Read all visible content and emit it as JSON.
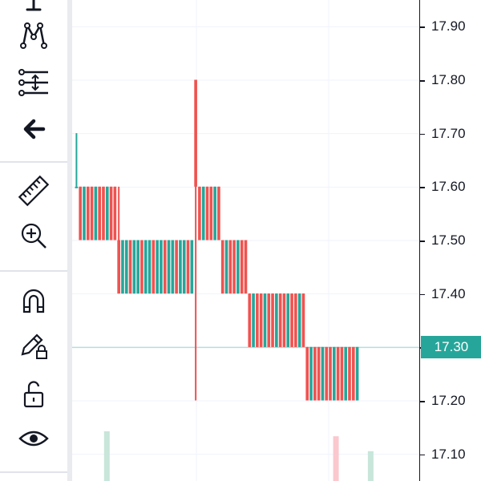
{
  "toolbar": {
    "tools": [
      {
        "name": "cursor-tool",
        "icon": "cursor-icon"
      },
      {
        "name": "pattern-tool",
        "icon": "pattern-icon"
      },
      {
        "name": "projection-tool",
        "icon": "projection-icon"
      },
      {
        "name": "back-tool",
        "icon": "arrow-left-icon"
      },
      {
        "name": "ruler-tool",
        "icon": "ruler-icon"
      },
      {
        "name": "zoom-in-tool",
        "icon": "zoom-in-icon"
      },
      {
        "name": "magnet-tool",
        "icon": "magnet-icon"
      },
      {
        "name": "lock-drawings-tool",
        "icon": "pencil-lock-icon"
      },
      {
        "name": "unlock-tool",
        "icon": "unlock-icon"
      },
      {
        "name": "visibility-tool",
        "icon": "eye-icon"
      }
    ]
  },
  "price_axis": {
    "ticks": [
      "17.90",
      "17.80",
      "17.70",
      "17.60",
      "17.50",
      "17.40",
      "17.30",
      "17.20",
      "17.10"
    ],
    "last_price": "17.30"
  },
  "colors": {
    "up": "#26a69a",
    "down": "#ef5350",
    "last_price_bg": "#26a69a",
    "grid": "#f0f3fa",
    "volume_up": "#c8e6da",
    "volume_down": "#fac8cd"
  },
  "chart_data": {
    "type": "candlestick",
    "ylim": [
      17.05,
      17.95
    ],
    "last_price": 17.3,
    "groups": [
      {
        "high": 17.7,
        "low": 17.6,
        "open": 17.6,
        "close": 17.6,
        "count": 1
      },
      {
        "high": 17.6,
        "low": 17.5,
        "open": 17.6,
        "close": 17.5,
        "count": 10
      },
      {
        "high": 17.6,
        "low": 17.4,
        "open": 17.5,
        "close": 17.4,
        "count": 1
      },
      {
        "high": 17.5,
        "low": 17.4,
        "open": 17.4,
        "close": 17.5,
        "count": 19
      },
      {
        "high": 17.8,
        "low": 17.2,
        "open": 17.8,
        "close": 17.6,
        "count": 1
      },
      {
        "high": 17.6,
        "low": 17.5,
        "open": 17.6,
        "close": 17.5,
        "count": 6
      },
      {
        "high": 17.5,
        "low": 17.4,
        "open": 17.5,
        "close": 17.4,
        "count": 7
      },
      {
        "high": 17.4,
        "low": 17.3,
        "open": 17.4,
        "close": 17.3,
        "count": 15
      },
      {
        "high": 17.3,
        "low": 17.2,
        "open": 17.3,
        "close": 17.2,
        "count": 14
      }
    ],
    "volume": [
      {
        "position": 0.1,
        "level": 1.0,
        "direction": "up"
      },
      {
        "position": 0.76,
        "level": 0.9,
        "direction": "down"
      },
      {
        "position": 0.86,
        "level": 0.6,
        "direction": "up"
      }
    ]
  }
}
